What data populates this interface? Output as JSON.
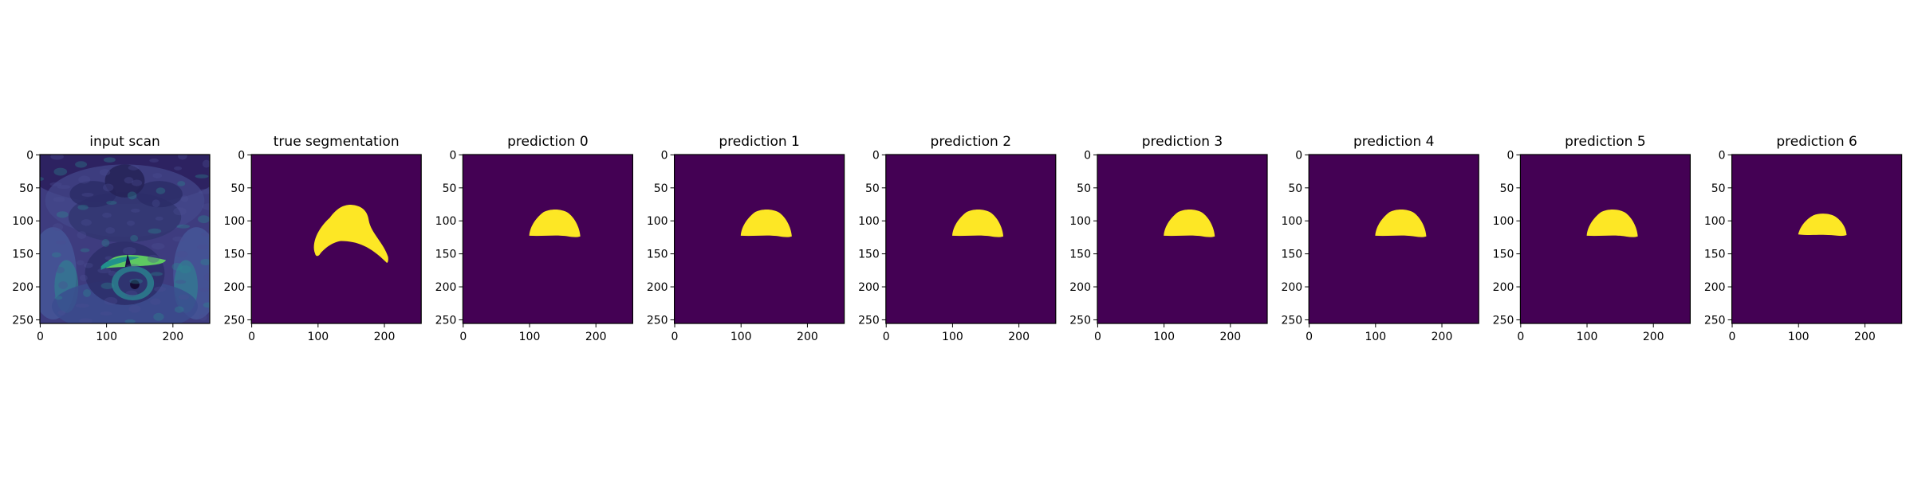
{
  "panels": [
    {
      "title": "input scan",
      "kind": "scan"
    },
    {
      "title": "true segmentation",
      "kind": "mask",
      "mask": "crescent"
    },
    {
      "title": "prediction 0",
      "kind": "mask",
      "mask": "dome"
    },
    {
      "title": "prediction 1",
      "kind": "mask",
      "mask": "dome"
    },
    {
      "title": "prediction 2",
      "kind": "mask",
      "mask": "dome"
    },
    {
      "title": "prediction 3",
      "kind": "mask",
      "mask": "dome"
    },
    {
      "title": "prediction 4",
      "kind": "mask",
      "mask": "dome"
    },
    {
      "title": "prediction 5",
      "kind": "mask",
      "mask": "dome"
    },
    {
      "title": "prediction 6",
      "kind": "mask",
      "mask": "dome-small"
    }
  ],
  "axes": {
    "x_ticks": [
      "0",
      "100",
      "200"
    ],
    "y_ticks": [
      "0",
      "50",
      "100",
      "150",
      "200",
      "250"
    ]
  },
  "colors": {
    "background": "#440154",
    "mask": "#fde725",
    "scan_mid": "#3b528b",
    "scan_teal": "#21918c",
    "scan_green": "#5ec962"
  }
}
